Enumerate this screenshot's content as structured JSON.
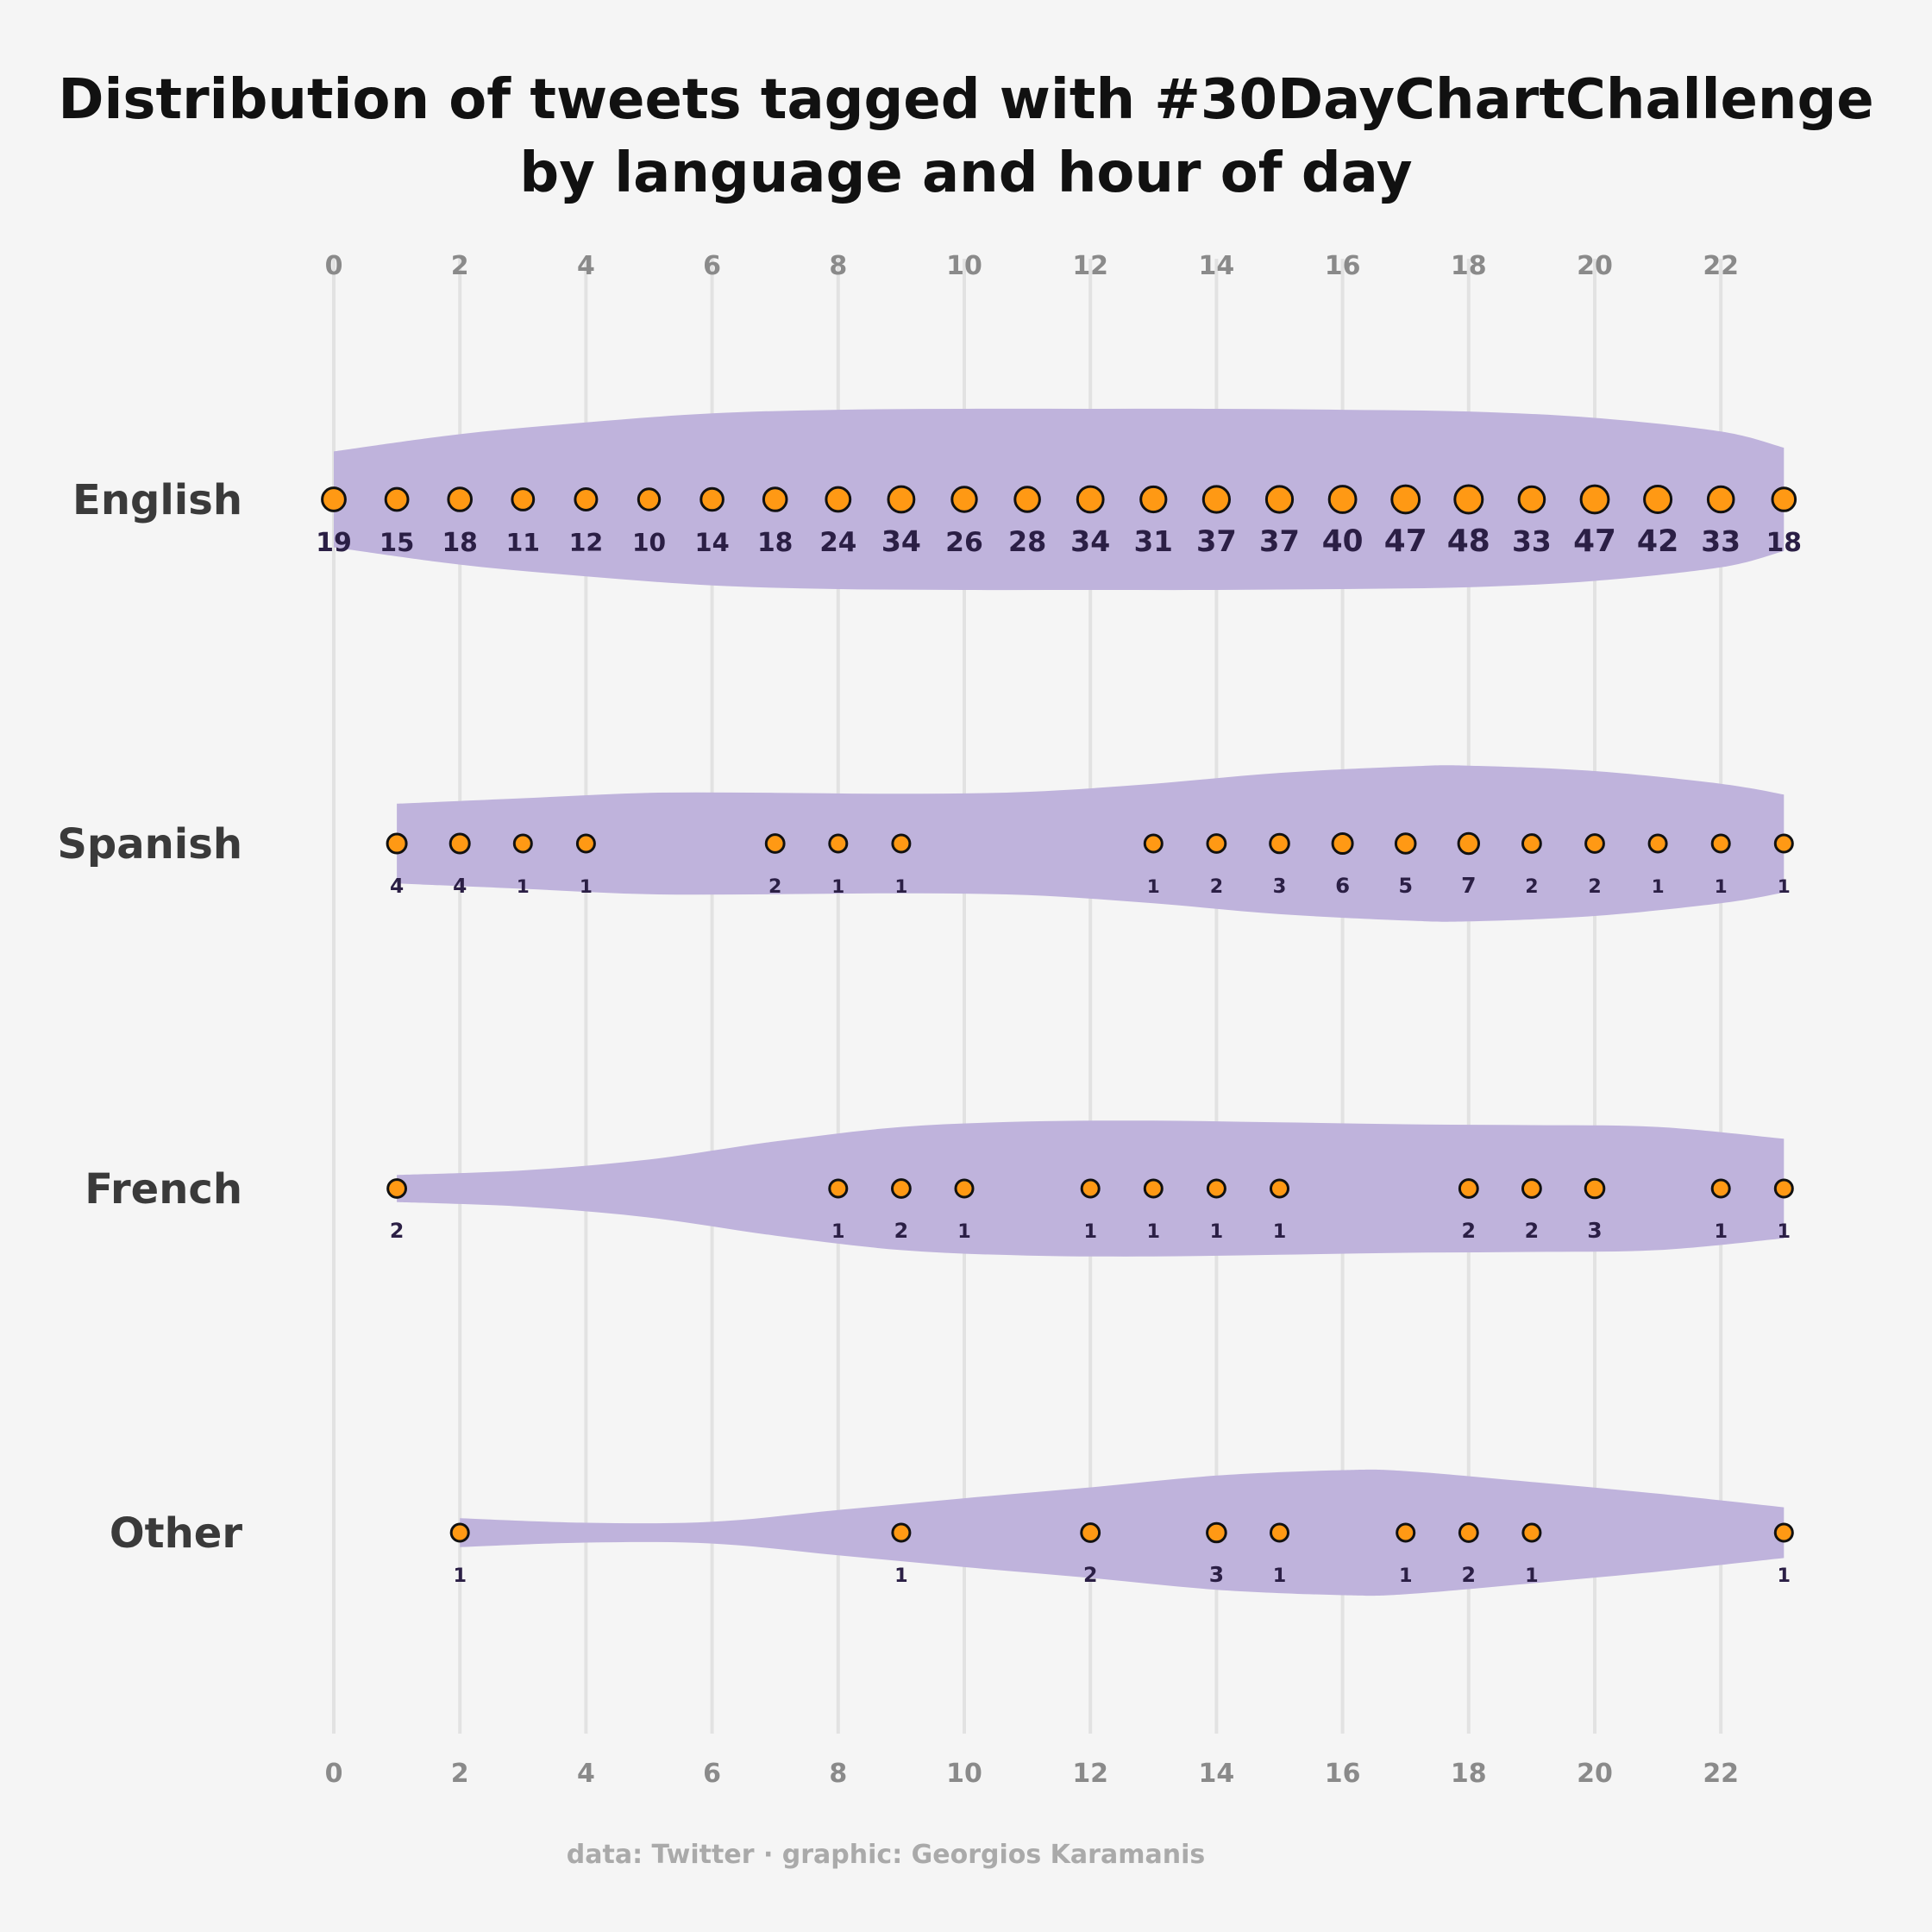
{
  "chart_data": {
    "type": "violin-dot",
    "title_lines": [
      "Distribution of tweets tagged with #30DayChartChallenge",
      "by language and hour of day"
    ],
    "x_ticks": [
      0,
      2,
      4,
      6,
      8,
      10,
      12,
      14,
      16,
      18,
      20,
      22
    ],
    "x_tick_labels": [
      "0",
      "2",
      "4",
      "6",
      "8",
      "10",
      "12",
      "14",
      "16",
      "18",
      "20",
      "22"
    ],
    "xlim": [
      0,
      23
    ],
    "caption": "data: Twitter · graphic: Georgios Karamanis",
    "colors": {
      "violin": "#bfb3dc",
      "dot": "#ff9914",
      "dot_stroke": "#111111",
      "label": "#2b1f45",
      "background": "#f5f5f5"
    },
    "series": [
      {
        "name": "English",
        "points": [
          {
            "hour": 0,
            "count": 19
          },
          {
            "hour": 1,
            "count": 15
          },
          {
            "hour": 2,
            "count": 18
          },
          {
            "hour": 3,
            "count": 11
          },
          {
            "hour": 4,
            "count": 12
          },
          {
            "hour": 5,
            "count": 10
          },
          {
            "hour": 6,
            "count": 14
          },
          {
            "hour": 7,
            "count": 18
          },
          {
            "hour": 8,
            "count": 24
          },
          {
            "hour": 9,
            "count": 34
          },
          {
            "hour": 10,
            "count": 26
          },
          {
            "hour": 11,
            "count": 28
          },
          {
            "hour": 12,
            "count": 34
          },
          {
            "hour": 13,
            "count": 31
          },
          {
            "hour": 14,
            "count": 37
          },
          {
            "hour": 15,
            "count": 37
          },
          {
            "hour": 16,
            "count": 40
          },
          {
            "hour": 17,
            "count": 47
          },
          {
            "hour": 18,
            "count": 48
          },
          {
            "hour": 19,
            "count": 33
          },
          {
            "hour": 20,
            "count": 47
          },
          {
            "hour": 21,
            "count": 42
          },
          {
            "hour": 22,
            "count": 33
          },
          {
            "hour": 23,
            "count": 18
          }
        ],
        "density": [
          [
            0,
            0.53
          ],
          [
            2,
            0.72
          ],
          [
            4,
            0.85
          ],
          [
            6,
            0.95
          ],
          [
            8,
            0.99
          ],
          [
            10,
            1.0
          ],
          [
            12,
            1.0
          ],
          [
            14,
            1.0
          ],
          [
            16,
            0.99
          ],
          [
            18,
            0.97
          ],
          [
            20,
            0.9
          ],
          [
            22,
            0.75
          ],
          [
            23,
            0.57
          ]
        ]
      },
      {
        "name": "Spanish",
        "points": [
          {
            "hour": 1,
            "count": 4
          },
          {
            "hour": 2,
            "count": 4
          },
          {
            "hour": 3,
            "count": 1
          },
          {
            "hour": 4,
            "count": 1
          },
          {
            "hour": 7,
            "count": 2
          },
          {
            "hour": 8,
            "count": 1
          },
          {
            "hour": 9,
            "count": 1
          },
          {
            "hour": 13,
            "count": 1
          },
          {
            "hour": 14,
            "count": 2
          },
          {
            "hour": 15,
            "count": 3
          },
          {
            "hour": 16,
            "count": 6
          },
          {
            "hour": 17,
            "count": 5
          },
          {
            "hour": 18,
            "count": 7
          },
          {
            "hour": 19,
            "count": 2
          },
          {
            "hour": 20,
            "count": 2
          },
          {
            "hour": 21,
            "count": 1
          },
          {
            "hour": 22,
            "count": 1
          },
          {
            "hour": 23,
            "count": 1
          }
        ],
        "density": [
          [
            1,
            0.44
          ],
          [
            3,
            0.5
          ],
          [
            5,
            0.56
          ],
          [
            7,
            0.56
          ],
          [
            9,
            0.55
          ],
          [
            11,
            0.57
          ],
          [
            13,
            0.66
          ],
          [
            15,
            0.78
          ],
          [
            17,
            0.85
          ],
          [
            18,
            0.86
          ],
          [
            20,
            0.8
          ],
          [
            22,
            0.66
          ],
          [
            23,
            0.54
          ]
        ]
      },
      {
        "name": "French",
        "points": [
          {
            "hour": 1,
            "count": 2
          },
          {
            "hour": 8,
            "count": 1
          },
          {
            "hour": 9,
            "count": 2
          },
          {
            "hour": 10,
            "count": 1
          },
          {
            "hour": 12,
            "count": 1
          },
          {
            "hour": 13,
            "count": 1
          },
          {
            "hour": 14,
            "count": 1
          },
          {
            "hour": 15,
            "count": 1
          },
          {
            "hour": 18,
            "count": 2
          },
          {
            "hour": 19,
            "count": 2
          },
          {
            "hour": 20,
            "count": 3
          },
          {
            "hour": 22,
            "count": 1
          },
          {
            "hour": 23,
            "count": 1
          }
        ],
        "density": [
          [
            1,
            0.15
          ],
          [
            3,
            0.2
          ],
          [
            5,
            0.32
          ],
          [
            7,
            0.52
          ],
          [
            9,
            0.68
          ],
          [
            11,
            0.74
          ],
          [
            13,
            0.75
          ],
          [
            15,
            0.73
          ],
          [
            17,
            0.71
          ],
          [
            19,
            0.7
          ],
          [
            21,
            0.68
          ],
          [
            23,
            0.55
          ]
        ]
      },
      {
        "name": "Other",
        "points": [
          {
            "hour": 2,
            "count": 1
          },
          {
            "hour": 9,
            "count": 1
          },
          {
            "hour": 12,
            "count": 2
          },
          {
            "hour": 14,
            "count": 3
          },
          {
            "hour": 15,
            "count": 1
          },
          {
            "hour": 17,
            "count": 1
          },
          {
            "hour": 18,
            "count": 2
          },
          {
            "hour": 19,
            "count": 1
          },
          {
            "hour": 23,
            "count": 1
          }
        ],
        "density": [
          [
            2,
            0.16
          ],
          [
            4,
            0.11
          ],
          [
            6,
            0.12
          ],
          [
            8,
            0.25
          ],
          [
            10,
            0.38
          ],
          [
            12,
            0.5
          ],
          [
            14,
            0.63
          ],
          [
            16,
            0.69
          ],
          [
            17,
            0.68
          ],
          [
            19,
            0.56
          ],
          [
            21,
            0.43
          ],
          [
            23,
            0.28
          ]
        ]
      }
    ]
  }
}
